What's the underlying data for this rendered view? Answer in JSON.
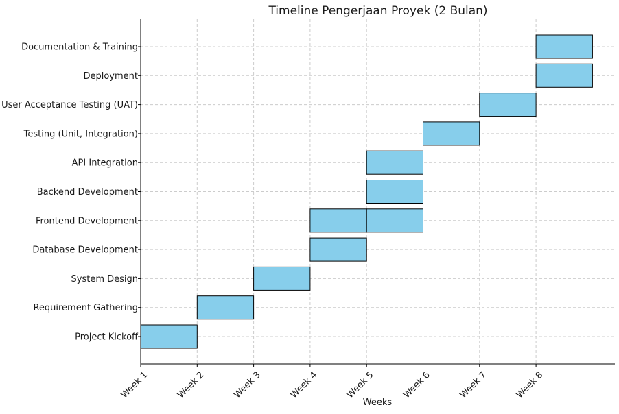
{
  "chart_data": {
    "type": "bar",
    "orientation": "horizontal-gantt",
    "title": "Timeline Pengerjaan Proyek (2 Bulan)",
    "xlabel": "Weeks",
    "ylabel": "",
    "x_ticks": [
      "Week 1",
      "Week 2",
      "Week 3",
      "Week 4",
      "Week 5",
      "Week 6",
      "Week 7",
      "Week 8"
    ],
    "xlim": [
      1,
      9.4
    ],
    "grid": true,
    "legend": "none",
    "bar_color": "#87ceeb",
    "bar_edge_color": "#000000",
    "grid_color": "#cccccc",
    "axis_color": "#000000",
    "tasks": [
      "Project Kickoff",
      "Requirement Gathering",
      "System Design",
      "Database Development",
      "Frontend Development",
      "Backend Development",
      "API Integration",
      "Testing (Unit, Integration)",
      "User Acceptance Testing (UAT)",
      "Deployment",
      "Documentation & Training"
    ],
    "bars": [
      {
        "task": "Project Kickoff",
        "start": 1,
        "end": 2
      },
      {
        "task": "Requirement Gathering",
        "start": 2,
        "end": 3
      },
      {
        "task": "System Design",
        "start": 3,
        "end": 4
      },
      {
        "task": "Database Development",
        "start": 4,
        "end": 5
      },
      {
        "task": "Frontend Development",
        "start": 4,
        "end": 5
      },
      {
        "task": "Frontend Development",
        "start": 5,
        "end": 6
      },
      {
        "task": "Backend Development",
        "start": 5,
        "end": 6
      },
      {
        "task": "API Integration",
        "start": 5,
        "end": 6
      },
      {
        "task": "Testing (Unit, Integration)",
        "start": 6,
        "end": 7
      },
      {
        "task": "User Acceptance Testing (UAT)",
        "start": 7,
        "end": 8
      },
      {
        "task": "Deployment",
        "start": 8,
        "end": 9
      },
      {
        "task": "Documentation & Training",
        "start": 8,
        "end": 9
      }
    ]
  }
}
